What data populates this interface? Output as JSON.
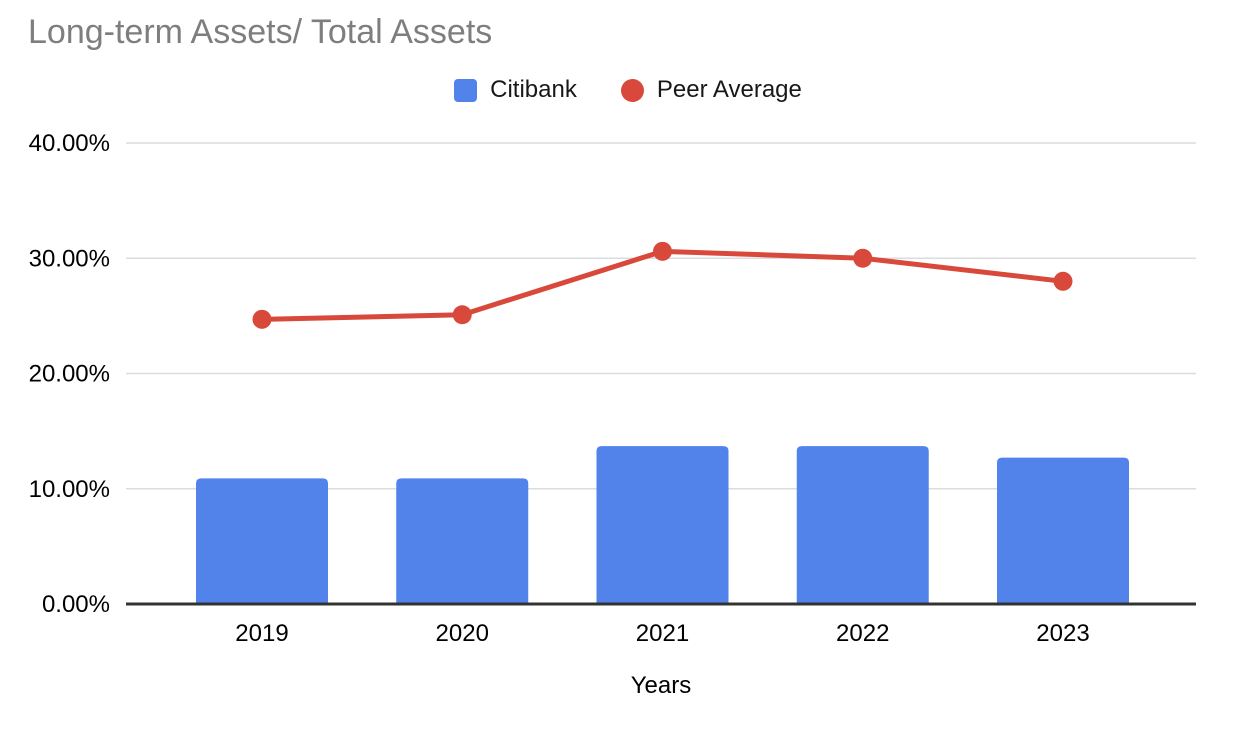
{
  "header": {
    "title": "Long-term Assets/ Total Assets",
    "title_color": "#7e7e7e"
  },
  "legend": {
    "position": "top",
    "items": [
      {
        "label": "Citibank",
        "shape": "square",
        "color": "#5183eb"
      },
      {
        "label": "Peer Average",
        "shape": "circle",
        "color": "#d9493b"
      }
    ]
  },
  "chart_data": {
    "type": "combo",
    "title": "Long-term Assets/ Total Assets",
    "categories": [
      "2019",
      "2020",
      "2021",
      "2022",
      "2023"
    ],
    "series": [
      {
        "name": "Citibank",
        "type": "bar",
        "color": "#5183eb",
        "values": [
          10.9,
          10.9,
          13.7,
          13.7,
          12.7
        ]
      },
      {
        "name": "Peer Average",
        "type": "line",
        "color": "#d9493b",
        "values": [
          24.7,
          25.1,
          30.6,
          30.0,
          28.0
        ]
      }
    ],
    "xlabel": "Years",
    "ylabel": "",
    "ylim": [
      0,
      40
    ],
    "yticks": [
      {
        "value": 0,
        "label": "0.00%"
      },
      {
        "value": 10,
        "label": "10.00%"
      },
      {
        "value": 20,
        "label": "20.00%"
      },
      {
        "value": 30,
        "label": "30.00%"
      },
      {
        "value": 40,
        "label": "40.00%"
      }
    ],
    "grid": true,
    "legend_position": "top",
    "axis_color": "#333333",
    "gridline_color": "#dadce0",
    "values_unit": "percent"
  }
}
